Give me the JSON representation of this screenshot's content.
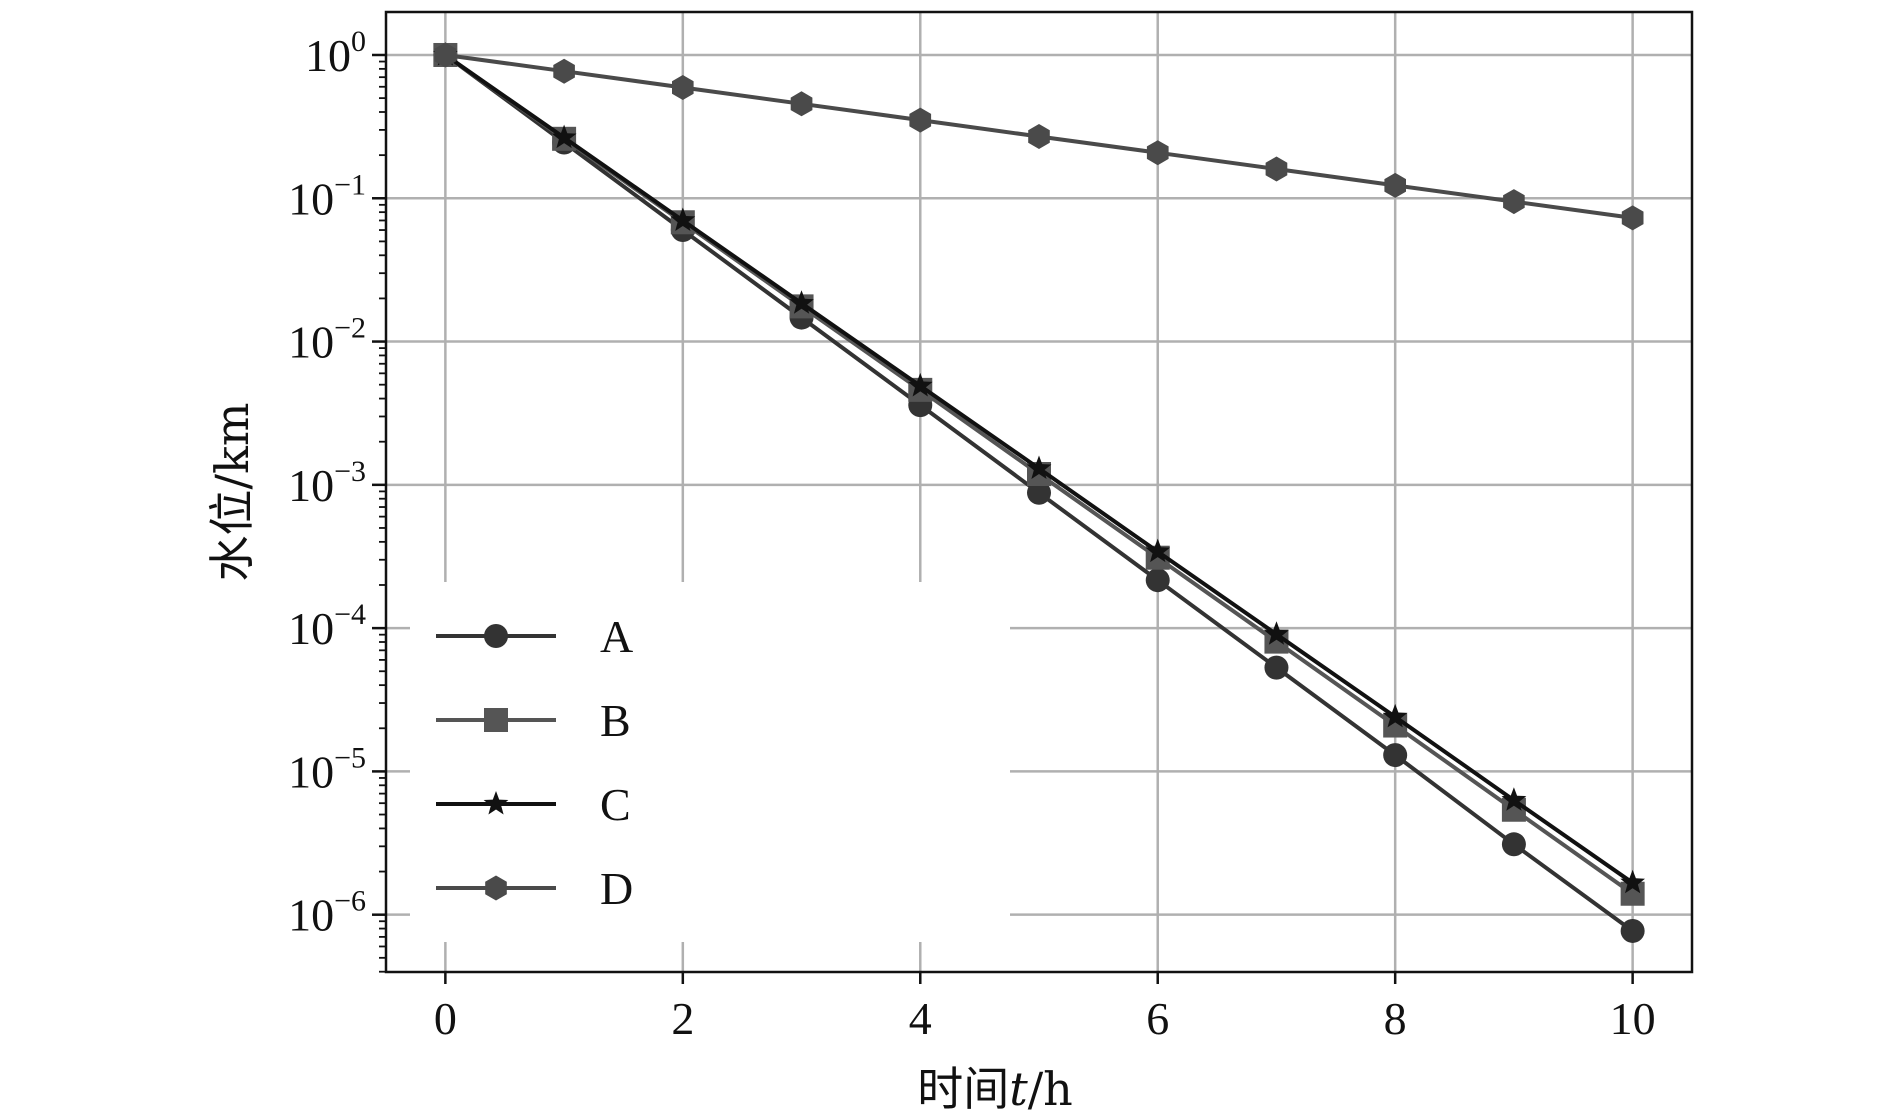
{
  "chart_data": {
    "type": "line",
    "xlabel_prefix": "时间",
    "xlabel_var": "t",
    "xlabel_suffix": "/h",
    "ylabel": "水位/km",
    "y_scale": "log",
    "xlim": [
      -0.5,
      10.5
    ],
    "ylim_exp": [
      -6.4,
      0.3
    ],
    "x_ticks": [
      0,
      2,
      4,
      6,
      8,
      10
    ],
    "y_tick_exponents": [
      0,
      -1,
      -2,
      -3,
      -4,
      -5,
      -6
    ],
    "y_tick_base": "10",
    "grid": true,
    "legend_position": "lower-left",
    "x": [
      0,
      1,
      2,
      3,
      4,
      5,
      6,
      7,
      8,
      9,
      10
    ],
    "series": [
      {
        "name": "A",
        "marker": "circle",
        "color": "#333333",
        "values": [
          1.0,
          0.245,
          0.06,
          0.0147,
          0.0036,
          0.00088,
          0.000216,
          5.3e-05,
          1.3e-05,
          3.1e-06,
          7.7e-07
        ]
      },
      {
        "name": "B",
        "marker": "square",
        "color": "#555555",
        "values": [
          1.0,
          0.26,
          0.068,
          0.0176,
          0.0046,
          0.00119,
          0.00031,
          8.05e-05,
          2.09e-05,
          5.4e-06,
          1.4e-06
        ]
      },
      {
        "name": "C",
        "marker": "star",
        "color": "#111111",
        "values": [
          1.0,
          0.265,
          0.07,
          0.0185,
          0.0049,
          0.0013,
          0.000342,
          9.05e-05,
          2.4e-05,
          6.3e-06,
          1.67e-06
        ]
      },
      {
        "name": "D",
        "marker": "hexagon",
        "color": "#4a4a4a",
        "values": [
          1.0,
          0.77,
          0.593,
          0.456,
          0.351,
          0.27,
          0.208,
          0.16,
          0.123,
          0.0948,
          0.073
        ]
      }
    ]
  }
}
